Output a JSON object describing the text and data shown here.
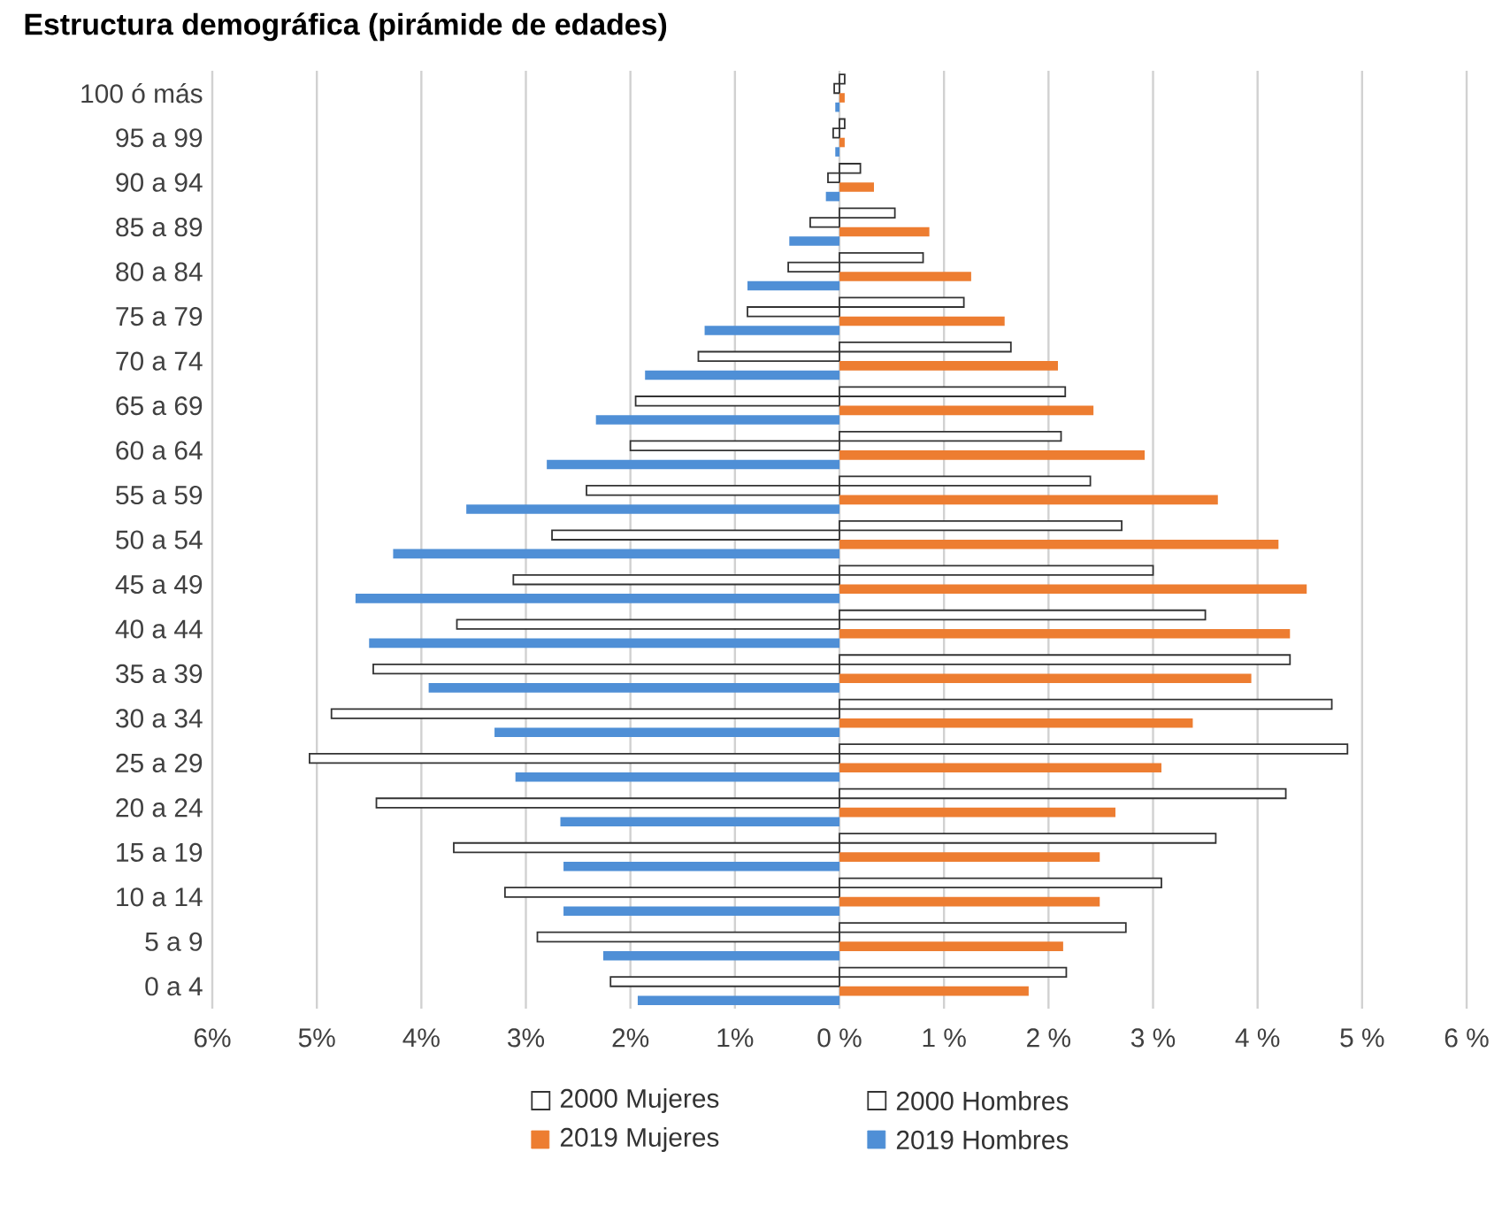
{
  "chart_data": {
    "type": "bar",
    "orientation": "horizontal",
    "title": "Estructura demográfica (pirámide de edades)",
    "categories": [
      "100 ó más",
      "95 a 99",
      "90 a 94",
      "85 a 89",
      "80 a 84",
      "75 a 79",
      "70 a 74",
      "65 a 69",
      "60 a 64",
      "55 a 59",
      "50 a 54",
      "45 a 49",
      "40 a 44",
      "35 a 39",
      "30 a 34",
      "25 a 29",
      "20 a 24",
      "15 a 19",
      "10 a 14",
      "5 a 9",
      "0 a 4"
    ],
    "series": [
      {
        "name": "2000 Mujeres",
        "color": "#ffffff",
        "values": [
          0.05,
          0.05,
          0.2,
          0.53,
          0.8,
          1.19,
          1.64,
          2.16,
          2.12,
          2.4,
          2.7,
          3.0,
          3.5,
          4.31,
          4.71,
          4.86,
          4.27,
          3.6,
          3.08,
          2.74,
          2.17
        ]
      },
      {
        "name": "2000 Hombres",
        "color": "#ffffff",
        "values": [
          -0.05,
          -0.06,
          -0.11,
          -0.28,
          -0.49,
          -0.88,
          -1.35,
          -1.95,
          -2.0,
          -2.42,
          -2.75,
          -3.12,
          -3.66,
          -4.46,
          -4.86,
          -5.07,
          -4.43,
          -3.69,
          -3.2,
          -2.89,
          -2.19
        ]
      },
      {
        "name": "2019 Mujeres",
        "color": "#ed7d31",
        "values": [
          0.05,
          0.05,
          0.33,
          0.86,
          1.26,
          1.58,
          2.09,
          2.43,
          2.92,
          3.62,
          4.2,
          4.47,
          4.31,
          3.94,
          3.38,
          3.08,
          2.64,
          2.49,
          2.49,
          2.14,
          1.81
        ]
      },
      {
        "name": "2019 Hombres",
        "color": "#4f8fd6",
        "values": [
          -0.04,
          -0.04,
          -0.13,
          -0.48,
          -0.88,
          -1.29,
          -1.86,
          -2.33,
          -2.8,
          -3.57,
          -4.27,
          -4.63,
          -4.5,
          -3.93,
          -3.3,
          -3.1,
          -2.67,
          -2.64,
          -2.64,
          -2.26,
          -1.93
        ]
      }
    ],
    "xlim": [
      -6,
      6
    ],
    "xticks": [
      {
        "value": -6,
        "label": "6%"
      },
      {
        "value": -5,
        "label": "5%"
      },
      {
        "value": -4,
        "label": "4%"
      },
      {
        "value": -3,
        "label": "3%"
      },
      {
        "value": -2,
        "label": "2%"
      },
      {
        "value": -1,
        "label": "1%"
      },
      {
        "value": 0,
        "label": "0 %"
      },
      {
        "value": 1,
        "label": "1 %"
      },
      {
        "value": 2,
        "label": "2 %"
      },
      {
        "value": 3,
        "label": "3 %"
      },
      {
        "value": 4,
        "label": "4 %"
      },
      {
        "value": 5,
        "label": "5 %"
      },
      {
        "value": 6,
        "label": "6 %"
      }
    ],
    "grid": "x",
    "legend": "bottom"
  }
}
